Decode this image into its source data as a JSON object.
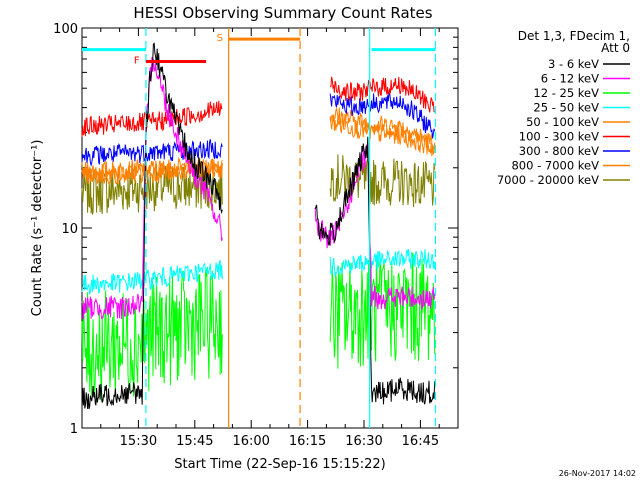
{
  "chart_data": {
    "type": "line",
    "title": "HESSI Observing Summary Count Rates",
    "xlabel": "Start Time (22-Sep-16 15:15:22)",
    "ylabel": "Count Rate (s⁻¹ detector⁻¹)",
    "y_scale": "log",
    "ylim": [
      1,
      100
    ],
    "xlim_minutes_since_start": [
      0,
      100
    ],
    "x_ticks": [
      {
        "label": "15:30",
        "minute": 15
      },
      {
        "label": "15:45",
        "minute": 30
      },
      {
        "label": "16:00",
        "minute": 45
      },
      {
        "label": "16:15",
        "minute": 60
      },
      {
        "label": "16:30",
        "minute": 75
      },
      {
        "label": "16:45",
        "minute": 90
      }
    ],
    "y_ticks": [
      {
        "label": "1",
        "value": 1
      },
      {
        "label": "10",
        "value": 10
      },
      {
        "label": "100",
        "value": 100
      }
    ],
    "legend_title": "Det 1,3, FDecim 1,\nAtt 0",
    "legend_placement": "right",
    "timestamp": "26-Nov-2017 14:02",
    "flags": [
      {
        "label": "F",
        "color": "#ff0000",
        "start": 17,
        "end": 33,
        "value": 68
      },
      {
        "label": "S",
        "color": "#ff8000",
        "start": 39,
        "end": 58,
        "value": 88
      },
      {
        "label": "",
        "color": "#00ffff",
        "start": 0,
        "end": 17,
        "value": 78
      },
      {
        "label": "",
        "color": "#00ffff",
        "start": 77,
        "end": 94,
        "value": 78
      }
    ],
    "vlines": [
      {
        "minute": 17,
        "color": "#00ffff",
        "dashed": true
      },
      {
        "minute": 39,
        "color": "#ff8000",
        "dashed": false
      },
      {
        "minute": 58,
        "color": "#ff8000",
        "dashed": true
      },
      {
        "minute": 76.5,
        "color": "#00ffff",
        "dashed": false
      },
      {
        "minute": 94,
        "color": "#00ffff",
        "dashed": true
      }
    ],
    "series": [
      {
        "name": "3 - 6 keV",
        "color": "#000000",
        "x": [
          0,
          10,
          16,
          17,
          18,
          19,
          20,
          21,
          23,
          26,
          29,
          33,
          36,
          37.5,
          60,
          62,
          63,
          65,
          67,
          69,
          71,
          73,
          75,
          76,
          77,
          80,
          85,
          90,
          94
        ],
        "y": [
          1.4,
          1.5,
          1.5,
          30,
          55,
          80,
          72,
          60,
          45,
          30,
          22,
          18,
          15,
          12,
          null,
          14,
          10,
          9,
          9.5,
          12,
          15,
          19,
          24,
          26,
          1.5,
          1.5,
          1.6,
          1.5,
          1.5
        ]
      },
      {
        "name": "6 - 12 keV",
        "color": "#ff00ff",
        "x": [
          0,
          10,
          16,
          17,
          18,
          19,
          20,
          21,
          23,
          26,
          29,
          33,
          36,
          37.5,
          60,
          62,
          63,
          65,
          67,
          69,
          71,
          73,
          75,
          76,
          77,
          80,
          85,
          90,
          94
        ],
        "y": [
          4,
          4,
          4.2,
          28,
          55,
          72,
          62,
          52,
          38,
          27,
          20,
          15,
          11,
          9,
          null,
          12,
          10,
          9,
          9,
          11,
          14,
          18,
          22,
          24,
          4.5,
          4.5,
          4.5,
          4.5,
          4.4
        ]
      },
      {
        "name": "12 - 25 keV",
        "color": "#00ff00",
        "x": [
          0,
          10,
          20,
          30,
          37.5,
          60,
          66,
          72,
          77,
          85,
          94
        ],
        "y": [
          2.5,
          2.6,
          3.0,
          3.3,
          3.4,
          null,
          3.6,
          3.8,
          3.9,
          4.0,
          4.0
        ]
      },
      {
        "name": "25 - 50 keV",
        "color": "#00ffff",
        "x": [
          0,
          10,
          20,
          30,
          37.5,
          60,
          66,
          72,
          77,
          85,
          94
        ],
        "y": [
          5.2,
          5.3,
          5.6,
          6.0,
          6.2,
          null,
          6.4,
          6.6,
          6.8,
          7.0,
          7.0
        ]
      },
      {
        "name": "50 - 100 keV",
        "color": "#ff8000",
        "x": [
          0,
          10,
          20,
          30,
          37.5,
          60,
          66,
          72,
          77,
          85,
          94
        ],
        "y": [
          18,
          18.5,
          19,
          19.5,
          20,
          null,
          34,
          32,
          30,
          29,
          25
        ]
      },
      {
        "name": "100 - 300 keV",
        "color": "#ff0000",
        "x": [
          0,
          10,
          20,
          30,
          37.5,
          60,
          66,
          72,
          77,
          85,
          94
        ],
        "y": [
          32,
          33,
          34,
          37,
          40,
          null,
          52,
          47,
          50,
          52,
          40
        ]
      },
      {
        "name": "300 - 800 keV",
        "color": "#0000ff",
        "x": [
          0,
          10,
          20,
          30,
          37.5,
          60,
          66,
          72,
          77,
          85,
          94
        ],
        "y": [
          23,
          23.5,
          24,
          24.5,
          25,
          null,
          44,
          40,
          42,
          43,
          30
        ]
      },
      {
        "name": "800 - 7000 keV",
        "color": "#ff8000",
        "x": [
          0,
          10,
          20,
          30,
          37.5,
          60,
          66,
          72,
          77,
          85,
          94
        ],
        "y": [
          19,
          19.5,
          19.8,
          20,
          20,
          null,
          37,
          35,
          33,
          32,
          26
        ]
      },
      {
        "name": "7000 - 20000 keV",
        "color": "#808000",
        "x": [
          0,
          10,
          20,
          30,
          37.5,
          60,
          66,
          72,
          77,
          85,
          94
        ],
        "y": [
          15,
          15.5,
          16,
          16,
          16,
          null,
          18,
          17.5,
          17,
          17,
          16
        ]
      }
    ]
  }
}
